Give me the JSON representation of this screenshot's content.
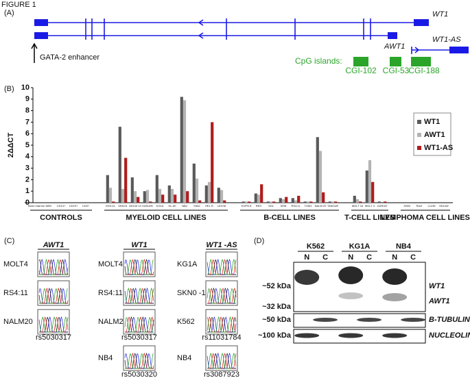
{
  "figure_label": "FIGURE 1",
  "panel_a": {
    "label": "(A)",
    "genes": [
      "WT1",
      "AWT1",
      "WT1-AS"
    ],
    "enhancer": "GATA-2 enhancer",
    "cpg_title": "CpG islands:",
    "cpg_islands": [
      "CGI-102",
      "CGI-53",
      "CGI-188"
    ]
  },
  "chart_data": {
    "type": "bar",
    "panel_label": "(B)",
    "y_label": "2ΔΔCT",
    "ylim": [
      0,
      10
    ],
    "yticks": [
      0,
      1,
      2,
      3,
      4,
      5,
      6,
      7,
      8,
      9,
      10
    ],
    "groups": [
      {
        "name": "CONTROLS",
        "categories": [
          "Bone marrow",
          "WBC",
          "CD14+",
          "CD19+",
          "CD3+"
        ]
      },
      {
        "name": "MYELOID CELL LINES",
        "categories": [
          "MV4;11",
          "SKNO1",
          "MOLM 13",
          "KASUMI",
          "KG1A",
          "HL-60",
          "NB4",
          "K562",
          "HEL R",
          "UOCM"
        ]
      },
      {
        "name": "B-CELL LINES",
        "categories": [
          "KOPN 8",
          "REH",
          "SD1",
          "SEM",
          "RS4;11",
          "TOM1",
          "NALM 20",
          "TANOUE"
        ]
      },
      {
        "name": "T-CELL LINES",
        "categories": [
          "MOLT 16",
          "MOLT 4",
          "JURKAT"
        ]
      },
      {
        "name": "LYMPHOMA CELL LINES",
        "categories": [
          "JVM2",
          "RAJI",
          "L1236",
          "HDLM2"
        ]
      }
    ],
    "series": [
      {
        "name": "WT1",
        "color": "#5a5a5a",
        "values": [
          [
            0,
            0,
            0,
            0,
            0
          ],
          [
            2.4,
            6.6,
            2.2,
            1.0,
            2.4,
            1.5,
            9.2,
            3.4,
            1.5,
            1.3
          ],
          [
            0.1,
            0.8,
            0.1,
            0.4,
            0.4,
            0.1,
            5.7,
            0.1
          ],
          [
            0.6,
            2.8,
            0.1
          ],
          [
            0,
            0,
            0,
            0
          ]
        ]
      },
      {
        "name": "AWT1",
        "color": "#b4b4b4",
        "values": [
          [
            0,
            0,
            0,
            0,
            0
          ],
          [
            1.3,
            1.2,
            1.0,
            1.1,
            1.2,
            1.2,
            8.9,
            2.1,
            1.8,
            1.1
          ],
          [
            0.1,
            0.7,
            0.1,
            0.3,
            0.2,
            0.1,
            4.5,
            0.1
          ],
          [
            0.3,
            3.7,
            0
          ],
          [
            0,
            0,
            0,
            0
          ]
        ]
      },
      {
        "name": "WT1-AS",
        "color": "#b01c1c",
        "values": [
          [
            0,
            0,
            0,
            0,
            0
          ],
          [
            0.1,
            3.9,
            0.5,
            0.1,
            0.7,
            0.7,
            1.0,
            0.2,
            7.0,
            0.2
          ],
          [
            0.1,
            1.6,
            0.1,
            0.5,
            0.6,
            0.1,
            0.9,
            0.1
          ],
          [
            0.1,
            1.8,
            0.1
          ],
          [
            0,
            0,
            0,
            0
          ]
        ]
      }
    ]
  },
  "panel_c": {
    "label": "(C)",
    "columns": [
      {
        "title": "AWT1",
        "blocks": [
          {
            "samples": [
              "MOLT4",
              "RS4:11",
              "NALM20"
            ],
            "snp": "rs5030317"
          }
        ]
      },
      {
        "title": "WT1",
        "blocks": [
          {
            "samples": [
              "MOLT4",
              "RS4:11",
              "NALM20"
            ],
            "snp": "rs5030317"
          },
          {
            "samples": [
              "NB4"
            ],
            "snp": "rs5030320"
          }
        ]
      },
      {
        "title": "WT1 -AS",
        "blocks": [
          {
            "samples": [
              "KG1A",
              "SKN0 -1",
              "K562"
            ],
            "snp": "rs11031784"
          },
          {
            "samples": [
              "NB4"
            ],
            "snp": "rs3087923"
          }
        ]
      }
    ]
  },
  "panel_d": {
    "label": "(D)",
    "lanes": [
      "K562",
      "KG1A",
      "NB4"
    ],
    "fractions": [
      "N",
      "C"
    ],
    "markers": [
      "~52 kDa",
      "~32 kDa",
      "~50 kDa",
      "~100 kDa"
    ],
    "proteins": [
      "WT1",
      "AWT1",
      "B-TUBULIN",
      "NUCLEOLIN"
    ]
  }
}
